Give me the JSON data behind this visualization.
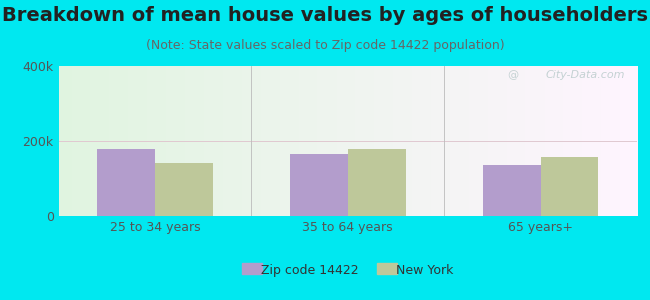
{
  "title": "Breakdown of mean house values by ages of householders",
  "subtitle": "(Note: State values scaled to Zip code 14422 population)",
  "categories": [
    "25 to 34 years",
    "35 to 64 years",
    "65 years+"
  ],
  "zip_values": [
    180000,
    165000,
    135000
  ],
  "ny_values": [
    142000,
    178000,
    158000
  ],
  "zip_color": "#b39dcc",
  "ny_color": "#bec89a",
  "background_outer": "#00e8f0",
  "ylim": [
    0,
    400000
  ],
  "ytick_labels": [
    "0",
    "200k",
    "400k"
  ],
  "legend_zip_label": "Zip code 14422",
  "legend_ny_label": "New York",
  "bar_width": 0.3,
  "title_fontsize": 14,
  "subtitle_fontsize": 9,
  "tick_fontsize": 9,
  "legend_fontsize": 9,
  "watermark": "City-Data.com",
  "grid_color": "#d8e8d0",
  "separator_color": "#bbbbbb"
}
